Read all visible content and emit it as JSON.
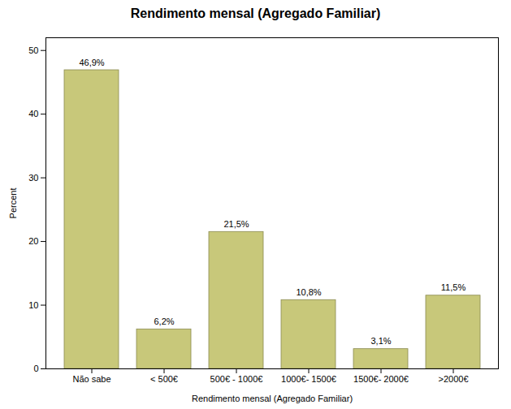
{
  "chart_data": {
    "type": "bar",
    "title": "Rendimento mensal (Agregado Familiar)",
    "xlabel": "Rendimento mensal (Agregado Familiar)",
    "ylabel": "Percent",
    "categories": [
      "Não sabe",
      "< 500€",
      "500€ - 1000€",
      "1000€- 1500€",
      "1500€- 2000€",
      ">2000€"
    ],
    "values": [
      46.9,
      6.2,
      21.5,
      10.8,
      3.1,
      11.5
    ],
    "value_labels": [
      "46,9%",
      "6,2%",
      "21,5%",
      "10,8%",
      "3,1%",
      "11,5%"
    ],
    "data_labels": true,
    "color": "#c8c87a",
    "ylim": [
      0,
      52
    ],
    "yticks": [
      0,
      10,
      20,
      30,
      40,
      50
    ],
    "grid": false
  }
}
